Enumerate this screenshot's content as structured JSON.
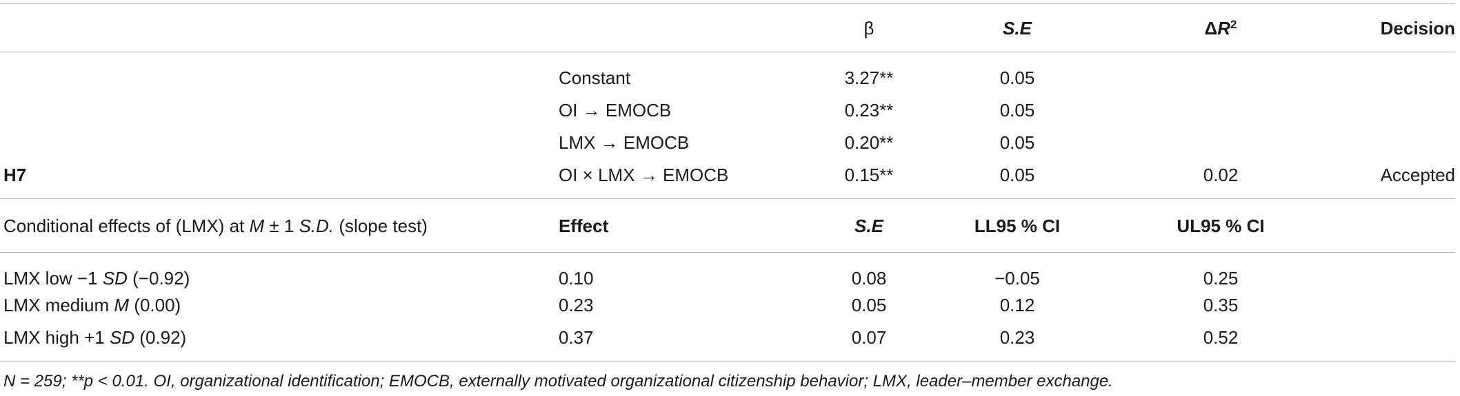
{
  "header": {
    "beta": "β",
    "se": "S.E",
    "delta_r2_prefix": "Δ",
    "delta_r2_var": "R",
    "delta_r2_sup": "2",
    "decision": "Decision"
  },
  "model_rows": [
    {
      "hypothesis": "",
      "term": "Constant",
      "beta": "3.27**",
      "se": "0.05",
      "delta_r2": "",
      "decision": ""
    },
    {
      "hypothesis": "",
      "term": "OI → EMOCB",
      "beta": "0.23**",
      "se": "0.05",
      "delta_r2": "",
      "decision": ""
    },
    {
      "hypothesis": "",
      "term": "LMX → EMOCB",
      "beta": "0.20**",
      "se": "0.05",
      "delta_r2": "",
      "decision": ""
    },
    {
      "hypothesis": "H7",
      "term": "OI × LMX → EMOCB",
      "beta": "0.15**",
      "se": "0.05",
      "delta_r2": "0.02",
      "decision": "Accepted"
    }
  ],
  "conditional_header": {
    "label_prefix": "Conditional effects of (LMX) at ",
    "label_m": "M",
    "label_mid": " ± 1 ",
    "label_sd": "S.D.",
    "label_suffix": " (slope test)",
    "effect": "Effect",
    "se": "S.E",
    "ll": "LL95 % CI",
    "ul": "UL95 % CI"
  },
  "conditional_rows": [
    {
      "label_prefix": "LMX low −1 ",
      "label_ital": "SD",
      "label_suffix": " (−0.92)",
      "effect": "0.10",
      "se": "0.08",
      "ll": "−0.05",
      "ul": "0.25"
    },
    {
      "label_prefix": "LMX medium ",
      "label_ital": "M",
      "label_suffix": " (0.00)",
      "effect": "0.23",
      "se": "0.05",
      "ll": "0.12",
      "ul": "0.35"
    },
    {
      "label_prefix": "LMX high +1 ",
      "label_ital": "SD",
      "label_suffix": " (0.92)",
      "effect": "0.37",
      "se": "0.07",
      "ll": "0.23",
      "ul": "0.52"
    }
  ],
  "footnote": "N = 259; **p < 0.01. OI, organizational identification; EMOCB, externally motivated organizational citizenship behavior; LMX, leader–member exchange."
}
